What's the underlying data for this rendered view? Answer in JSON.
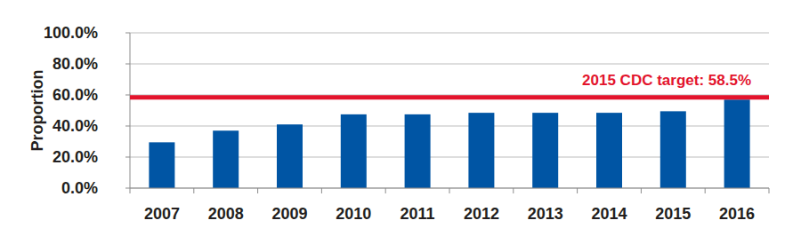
{
  "chart_data": {
    "type": "bar",
    "y_label": "Proportion",
    "categories": [
      "2007",
      "2008",
      "2009",
      "2010",
      "2011",
      "2012",
      "2013",
      "2014",
      "2015",
      "2016"
    ],
    "values": [
      29.5,
      37,
      41,
      47.5,
      47.5,
      48.5,
      48.5,
      48.5,
      49.5,
      57
    ],
    "color": "#0055a4",
    "ylim": [
      0,
      100
    ],
    "yticks": [
      {
        "value": 0,
        "label": "0.0%"
      },
      {
        "value": 20,
        "label": "20.0%"
      },
      {
        "value": 40,
        "label": "40.0%"
      },
      {
        "value": 60,
        "label": "60.0%"
      },
      {
        "value": 80,
        "label": "80.0%"
      },
      {
        "value": 100,
        "label": "100.0%"
      }
    ],
    "grid": true,
    "annotations": [
      {
        "text": "2015 CDC target: 58.5%",
        "value": 58.5,
        "color": "#e3142c"
      }
    ]
  }
}
